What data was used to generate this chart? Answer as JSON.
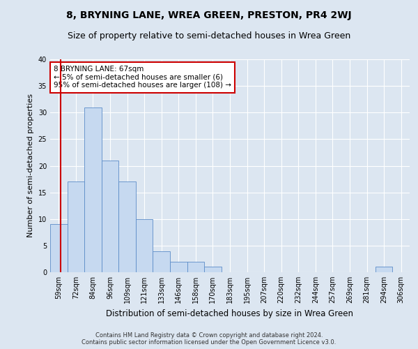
{
  "title": "8, BRYNING LANE, WREA GREEN, PRESTON, PR4 2WJ",
  "subtitle": "Size of property relative to semi-detached houses in Wrea Green",
  "xlabel": "Distribution of semi-detached houses by size in Wrea Green",
  "ylabel": "Number of semi-detached properties",
  "footer1": "Contains HM Land Registry data © Crown copyright and database right 2024.",
  "footer2": "Contains public sector information licensed under the Open Government Licence v3.0.",
  "annotation_title": "8 BRYNING LANE: 67sqm",
  "annotation_line2": "← 5% of semi-detached houses are smaller (6)",
  "annotation_line3": "95% of semi-detached houses are larger (108) →",
  "bar_labels": [
    "59sqm",
    "72sqm",
    "84sqm",
    "96sqm",
    "109sqm",
    "121sqm",
    "133sqm",
    "146sqm",
    "158sqm",
    "170sqm",
    "183sqm",
    "195sqm",
    "207sqm",
    "220sqm",
    "232sqm",
    "244sqm",
    "257sqm",
    "269sqm",
    "281sqm",
    "294sqm",
    "306sqm"
  ],
  "bar_values": [
    9,
    17,
    31,
    21,
    17,
    10,
    4,
    2,
    2,
    1,
    0,
    0,
    0,
    0,
    0,
    0,
    0,
    0,
    0,
    1,
    0
  ],
  "bar_color": "#c6d9f0",
  "bar_edge_color": "#5b8cc8",
  "ylim": [
    0,
    40
  ],
  "yticks": [
    0,
    5,
    10,
    15,
    20,
    25,
    30,
    35,
    40
  ],
  "background_color": "#dce6f1",
  "grid_color": "#ffffff",
  "annotation_box_color": "#ffffff",
  "annotation_box_edge": "#cc0000",
  "property_line_color": "#cc0000",
  "title_fontsize": 10,
  "subtitle_fontsize": 9,
  "axis_label_fontsize": 8.5,
  "annotation_fontsize": 7.5,
  "tick_fontsize": 7,
  "ylabel_fontsize": 8
}
